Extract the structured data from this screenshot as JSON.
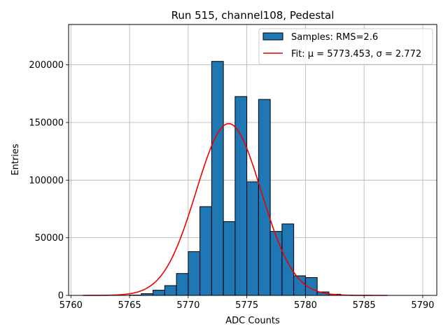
{
  "chart_data": {
    "type": "bar",
    "title": "Run 515, channel108, Pedestal",
    "xlabel": "ADC Counts",
    "ylabel": "Entries",
    "xlim": [
      5759.8,
      5791.2
    ],
    "ylim": [
      0,
      235000
    ],
    "x_ticks": [
      5760,
      5765,
      5770,
      5775,
      5780,
      5785,
      5790
    ],
    "y_ticks": [
      0,
      50000,
      100000,
      150000,
      200000
    ],
    "grid": true,
    "legend_position": "top-right",
    "bar_color": "#1f77b4",
    "fit_color": "#ee0000",
    "histogram": {
      "name": "Samples: RMS=2.6",
      "bin_edges": [
        5765,
        5766,
        5767,
        5768,
        5769,
        5770,
        5771,
        5772,
        5773,
        5774,
        5775,
        5776,
        5777,
        5778,
        5779,
        5780,
        5781,
        5782,
        5783
      ],
      "counts": [
        300,
        1500,
        4500,
        8500,
        19000,
        38000,
        77000,
        203000,
        64000,
        172500,
        98500,
        170000,
        55500,
        62000,
        17000,
        15500,
        3000,
        1000
      ]
    },
    "fit": {
      "name_prefix": "Fit: ",
      "mu_label": "μ = 5773.453",
      "sigma_label": "σ = 2.772",
      "mu": 5773.453,
      "sigma": 2.772,
      "peak": 149000,
      "x_range": [
        5761,
        5787
      ]
    }
  }
}
